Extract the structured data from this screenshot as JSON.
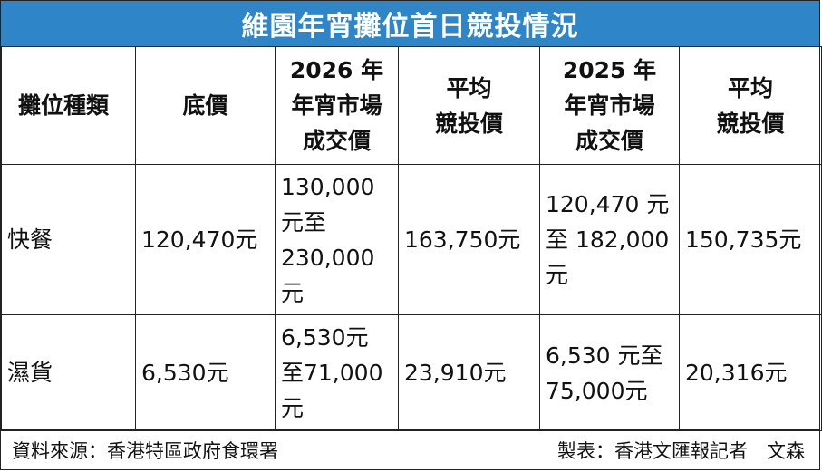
{
  "title": "維園年宵攤位首日競投情況",
  "table": {
    "headers": [
      "攤位種類",
      "底價",
      "2026 年\n年宵市場\n成交價",
      "平均\n競投價",
      "2025 年\n年宵市場\n成交價",
      "平均\n競投價"
    ],
    "rows": [
      {
        "type": "快餐",
        "base_price": "120,470元",
        "price_2026": "130,000\n元至\n230,000\n元",
        "avg_2026": "163,750元",
        "price_2025": "120,470 元\n至 182,000\n元",
        "avg_2025": "150,735元"
      },
      {
        "type": "濕貨",
        "base_price": "6,530元",
        "price_2026": "6,530元\n至71,000\n元",
        "avg_2026": "23,910元",
        "price_2025": "6,530 元至\n75,000元",
        "avg_2025": "20,316元"
      }
    ]
  },
  "footer": {
    "source": "資料來源：香港特區政府食環署",
    "credit": "製表：香港文匯報記者　文森"
  },
  "colors": {
    "title_bar": "#2e86c8",
    "title_text": "#ffffff"
  }
}
